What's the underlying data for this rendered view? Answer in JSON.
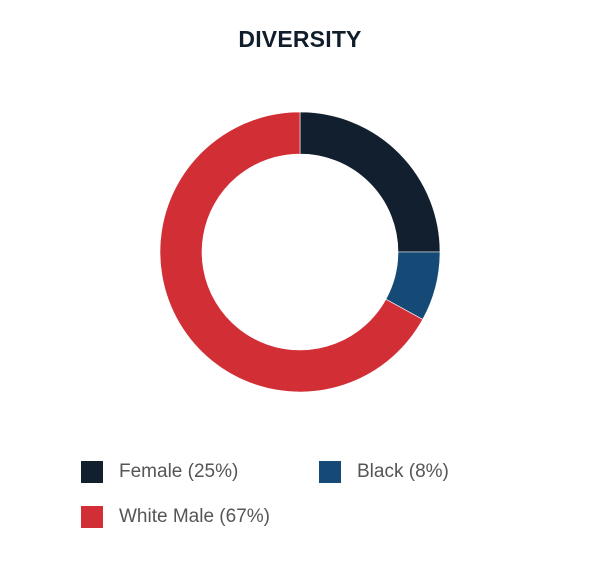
{
  "chart_data": {
    "type": "pie",
    "title": "DIVERSITY",
    "donut": true,
    "slices": [
      {
        "label": "Female (25%)",
        "value": 25,
        "color": "#121f2e"
      },
      {
        "label": "Black (8%)",
        "value": 8,
        "color": "#144a75"
      },
      {
        "label": "White Male (67%)",
        "value": 67,
        "color": "#d12f35"
      }
    ],
    "legend_position": "bottom"
  }
}
